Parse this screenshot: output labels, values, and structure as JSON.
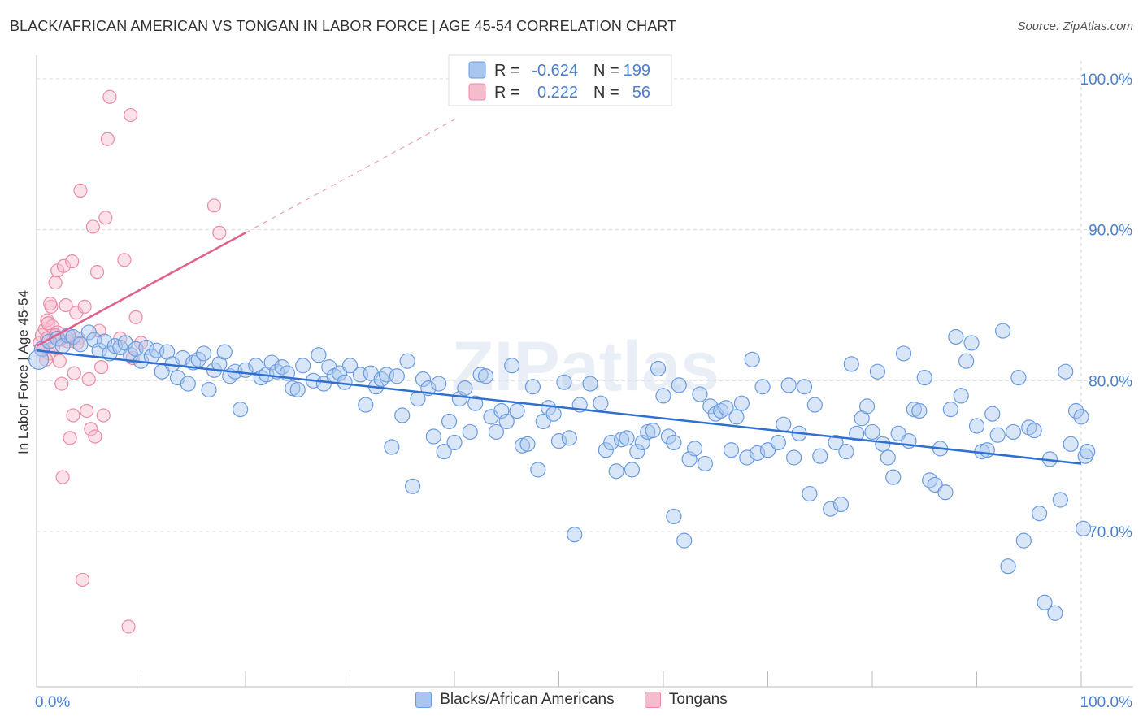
{
  "title": "BLACK/AFRICAN AMERICAN VS TONGAN IN LABOR FORCE | AGE 45-54 CORRELATION CHART",
  "source": "Source: ZipAtlas.com",
  "watermark": "ZIPatlas",
  "colors": {
    "blue_fill": "#a9c7ee",
    "blue_stroke": "#6a9be0",
    "blue_line": "#2f6fd0",
    "pink_fill": "#f6bccd",
    "pink_stroke": "#ee8aa9",
    "pink_line": "#e0608d",
    "axis_label_blue": "#4a80d0",
    "grid": "#dddddd"
  },
  "stats_legend": {
    "rows": [
      {
        "r_label": "R =",
        "r_value": "-0.624",
        "n_label": "N =",
        "n_value": "199",
        "series": "blue"
      },
      {
        "r_label": "R =",
        "r_value": "0.222",
        "n_label": "N =",
        "n_value": "56",
        "series": "pink"
      }
    ]
  },
  "bottom_legend": [
    {
      "label": "Blacks/African Americans",
      "series": "blue"
    },
    {
      "label": "Tongans",
      "series": "pink"
    }
  ],
  "chart_data": {
    "type": "scatter",
    "title": "BLACK/AFRICAN AMERICAN VS TONGAN IN LABOR FORCE | AGE 45-54 CORRELATION CHART",
    "xlabel": "",
    "ylabel": "In Labor Force | Age 45-54",
    "xlim": [
      0,
      100
    ],
    "ylim": [
      60,
      102
    ],
    "x_tick_labels": [
      "0.0%",
      "100.0%"
    ],
    "y_ticks": [
      70,
      80,
      90,
      100
    ],
    "y_tick_labels": [
      "70.0%",
      "80.0%",
      "90.0%",
      "100.0%"
    ],
    "grid": true,
    "legend_position": "top-center",
    "series": [
      {
        "name": "Blacks/African Americans",
        "color": "#a9c7ee",
        "trend": {
          "x": [
            0,
            100
          ],
          "y": [
            82.0,
            74.5
          ]
        },
        "points": [
          [
            0.5,
            82.1
          ],
          [
            1.2,
            82.6
          ],
          [
            2.0,
            82.8
          ],
          [
            2.5,
            82.3
          ],
          [
            3.0,
            83.0
          ],
          [
            3.5,
            82.9
          ],
          [
            4.2,
            82.4
          ],
          [
            5.0,
            83.2
          ],
          [
            5.5,
            82.7
          ],
          [
            6.0,
            82.0
          ],
          [
            6.5,
            82.6
          ],
          [
            7.0,
            81.8
          ],
          [
            7.5,
            82.3
          ],
          [
            8.0,
            82.2
          ],
          [
            8.5,
            82.5
          ],
          [
            9.0,
            81.7
          ],
          [
            9.5,
            82.1
          ],
          [
            10.0,
            81.3
          ],
          [
            10.5,
            82.2
          ],
          [
            11.0,
            81.6
          ],
          [
            11.5,
            82.0
          ],
          [
            12.0,
            80.6
          ],
          [
            12.5,
            81.9
          ],
          [
            13.0,
            81.1
          ],
          [
            13.5,
            80.2
          ],
          [
            14.0,
            81.5
          ],
          [
            14.5,
            79.8
          ],
          [
            15.0,
            81.2
          ],
          [
            15.5,
            81.4
          ],
          [
            16.0,
            81.8
          ],
          [
            16.5,
            79.4
          ],
          [
            17.0,
            80.7
          ],
          [
            17.5,
            81.1
          ],
          [
            18.0,
            81.9
          ],
          [
            18.5,
            80.3
          ],
          [
            19.0,
            80.6
          ],
          [
            19.5,
            78.1
          ],
          [
            20.0,
            80.7
          ],
          [
            21.0,
            81.0
          ],
          [
            21.5,
            80.2
          ],
          [
            22.0,
            80.4
          ],
          [
            22.5,
            81.2
          ],
          [
            23.0,
            80.6
          ],
          [
            23.5,
            80.9
          ],
          [
            24.0,
            80.5
          ],
          [
            24.5,
            79.5
          ],
          [
            25.0,
            79.4
          ],
          [
            25.5,
            81.0
          ],
          [
            26.5,
            80.0
          ],
          [
            27.0,
            81.7
          ],
          [
            27.5,
            79.8
          ],
          [
            28.0,
            80.9
          ],
          [
            28.5,
            80.3
          ],
          [
            29.0,
            80.5
          ],
          [
            29.5,
            79.9
          ],
          [
            30.0,
            81.0
          ],
          [
            31.0,
            80.4
          ],
          [
            31.5,
            78.4
          ],
          [
            32.0,
            80.5
          ],
          [
            32.5,
            79.6
          ],
          [
            33.0,
            80.1
          ],
          [
            33.5,
            80.4
          ],
          [
            34.0,
            75.6
          ],
          [
            34.5,
            80.3
          ],
          [
            35.0,
            77.7
          ],
          [
            35.5,
            81.3
          ],
          [
            36.0,
            73.0
          ],
          [
            36.5,
            78.8
          ],
          [
            37.0,
            80.1
          ],
          [
            37.5,
            79.5
          ],
          [
            38.0,
            76.3
          ],
          [
            38.5,
            79.8
          ],
          [
            39.0,
            75.3
          ],
          [
            39.5,
            77.3
          ],
          [
            40.0,
            75.9
          ],
          [
            40.5,
            78.8
          ],
          [
            41.0,
            79.5
          ],
          [
            41.5,
            76.6
          ],
          [
            42.0,
            78.5
          ],
          [
            42.5,
            80.4
          ],
          [
            43.0,
            80.3
          ],
          [
            43.5,
            77.6
          ],
          [
            44.0,
            76.6
          ],
          [
            44.5,
            78.0
          ],
          [
            45.0,
            77.3
          ],
          [
            45.5,
            81.0
          ],
          [
            46.0,
            78.0
          ],
          [
            46.5,
            75.7
          ],
          [
            47.0,
            75.8
          ],
          [
            47.5,
            79.6
          ],
          [
            48.0,
            74.1
          ],
          [
            48.5,
            77.3
          ],
          [
            49.0,
            78.2
          ],
          [
            49.5,
            77.8
          ],
          [
            50.0,
            76.0
          ],
          [
            50.5,
            79.9
          ],
          [
            51.0,
            76.2
          ],
          [
            51.5,
            69.8
          ],
          [
            52.0,
            78.4
          ],
          [
            53.0,
            79.8
          ],
          [
            54.0,
            78.5
          ],
          [
            54.5,
            75.4
          ],
          [
            55.0,
            75.9
          ],
          [
            55.5,
            74.0
          ],
          [
            56.0,
            76.1
          ],
          [
            56.5,
            76.2
          ],
          [
            57.0,
            74.1
          ],
          [
            57.5,
            75.3
          ],
          [
            58.0,
            75.9
          ],
          [
            58.5,
            76.6
          ],
          [
            59.0,
            76.7
          ],
          [
            59.5,
            80.8
          ],
          [
            60.0,
            79.0
          ],
          [
            60.5,
            76.3
          ],
          [
            61.0,
            75.9
          ],
          [
            61.5,
            79.7
          ],
          [
            62.0,
            69.4
          ],
          [
            62.5,
            74.8
          ],
          [
            63.0,
            75.5
          ],
          [
            63.5,
            79.1
          ],
          [
            64.0,
            74.5
          ],
          [
            64.5,
            78.3
          ],
          [
            65.0,
            77.8
          ],
          [
            65.5,
            78.0
          ],
          [
            66.0,
            78.2
          ],
          [
            66.5,
            75.4
          ],
          [
            67.0,
            77.6
          ],
          [
            67.5,
            78.5
          ],
          [
            68.0,
            74.9
          ],
          [
            68.5,
            81.4
          ],
          [
            69.0,
            75.2
          ],
          [
            69.5,
            79.6
          ],
          [
            70.0,
            75.4
          ],
          [
            71.0,
            75.9
          ],
          [
            71.5,
            77.1
          ],
          [
            72.0,
            79.7
          ],
          [
            72.5,
            74.9
          ],
          [
            73.0,
            76.5
          ],
          [
            73.5,
            79.6
          ],
          [
            74.0,
            72.5
          ],
          [
            74.5,
            78.4
          ],
          [
            75.0,
            75.0
          ],
          [
            76.0,
            71.5
          ],
          [
            76.5,
            75.9
          ],
          [
            77.0,
            71.8
          ],
          [
            77.5,
            75.3
          ],
          [
            78.0,
            81.1
          ],
          [
            78.5,
            76.5
          ],
          [
            79.0,
            77.5
          ],
          [
            79.5,
            78.3
          ],
          [
            80.0,
            76.6
          ],
          [
            80.5,
            80.6
          ],
          [
            81.0,
            75.8
          ],
          [
            81.5,
            74.9
          ],
          [
            82.0,
            73.6
          ],
          [
            82.5,
            76.5
          ],
          [
            83.0,
            81.8
          ],
          [
            83.5,
            76.0
          ],
          [
            84.0,
            78.1
          ],
          [
            84.5,
            78.0
          ],
          [
            85.0,
            80.2
          ],
          [
            85.5,
            73.4
          ],
          [
            86.0,
            73.1
          ],
          [
            86.5,
            75.5
          ],
          [
            87.0,
            72.6
          ],
          [
            87.5,
            78.1
          ],
          [
            88.0,
            82.9
          ],
          [
            88.5,
            79.0
          ],
          [
            89.0,
            81.3
          ],
          [
            89.5,
            82.5
          ],
          [
            90.0,
            77.0
          ],
          [
            90.5,
            75.3
          ],
          [
            91.0,
            75.4
          ],
          [
            91.5,
            77.8
          ],
          [
            92.0,
            76.4
          ],
          [
            92.5,
            83.3
          ],
          [
            93.0,
            67.7
          ],
          [
            93.5,
            76.6
          ],
          [
            94.0,
            80.2
          ],
          [
            94.5,
            69.4
          ],
          [
            95.0,
            76.9
          ],
          [
            95.5,
            76.7
          ],
          [
            96.0,
            71.2
          ],
          [
            96.5,
            65.3
          ],
          [
            97.0,
            74.8
          ],
          [
            97.5,
            64.6
          ],
          [
            98.0,
            72.1
          ],
          [
            98.5,
            80.6
          ],
          [
            99.0,
            75.8
          ],
          [
            99.5,
            78.0
          ],
          [
            100.0,
            77.6
          ],
          [
            100.2,
            70.2
          ],
          [
            100.4,
            75.0
          ],
          [
            100.6,
            75.3
          ],
          [
            61.0,
            71.0
          ]
        ]
      },
      {
        "name": "Tongans",
        "color": "#f6bccd",
        "trend": {
          "x": [
            0,
            20
          ],
          "y": [
            82.3,
            89.8
          ]
        },
        "trend_extension": {
          "x": [
            20,
            40
          ],
          "y": [
            89.8,
            97.3
          ]
        },
        "points": [
          [
            0.3,
            82.5
          ],
          [
            0.5,
            83.0
          ],
          [
            0.6,
            82.0
          ],
          [
            0.8,
            83.4
          ],
          [
            1.0,
            84.0
          ],
          [
            1.0,
            82.8
          ],
          [
            1.2,
            81.8
          ],
          [
            1.4,
            84.9
          ],
          [
            1.5,
            83.6
          ],
          [
            1.6,
            82.2
          ],
          [
            1.8,
            86.5
          ],
          [
            2.0,
            83.2
          ],
          [
            2.0,
            87.3
          ],
          [
            2.2,
            81.3
          ],
          [
            2.4,
            79.8
          ],
          [
            2.5,
            73.6
          ],
          [
            2.6,
            87.6
          ],
          [
            2.8,
            85.0
          ],
          [
            3.0,
            82.6
          ],
          [
            3.2,
            76.2
          ],
          [
            3.4,
            87.9
          ],
          [
            3.5,
            77.7
          ],
          [
            3.6,
            80.5
          ],
          [
            3.8,
            84.5
          ],
          [
            4.0,
            82.8
          ],
          [
            4.2,
            92.6
          ],
          [
            4.4,
            66.8
          ],
          [
            4.6,
            84.9
          ],
          [
            4.8,
            78.0
          ],
          [
            5.0,
            80.1
          ],
          [
            5.2,
            76.8
          ],
          [
            5.4,
            90.2
          ],
          [
            5.6,
            76.3
          ],
          [
            5.8,
            87.2
          ],
          [
            6.0,
            83.3
          ],
          [
            6.2,
            80.9
          ],
          [
            6.4,
            77.7
          ],
          [
            6.6,
            90.8
          ],
          [
            6.8,
            96.0
          ],
          [
            7.0,
            98.8
          ],
          [
            8.0,
            82.8
          ],
          [
            8.4,
            88.0
          ],
          [
            8.8,
            63.7
          ],
          [
            9.0,
            97.6
          ],
          [
            9.2,
            81.5
          ],
          [
            9.5,
            84.2
          ],
          [
            10.0,
            82.5
          ],
          [
            17.0,
            91.6
          ],
          [
            17.5,
            89.8
          ],
          [
            1.8,
            83.0
          ],
          [
            2.8,
            82.9
          ],
          [
            3.9,
            82.5
          ],
          [
            1.1,
            83.8
          ],
          [
            2.2,
            82.7
          ],
          [
            0.9,
            81.4
          ],
          [
            1.3,
            85.1
          ]
        ]
      }
    ]
  }
}
